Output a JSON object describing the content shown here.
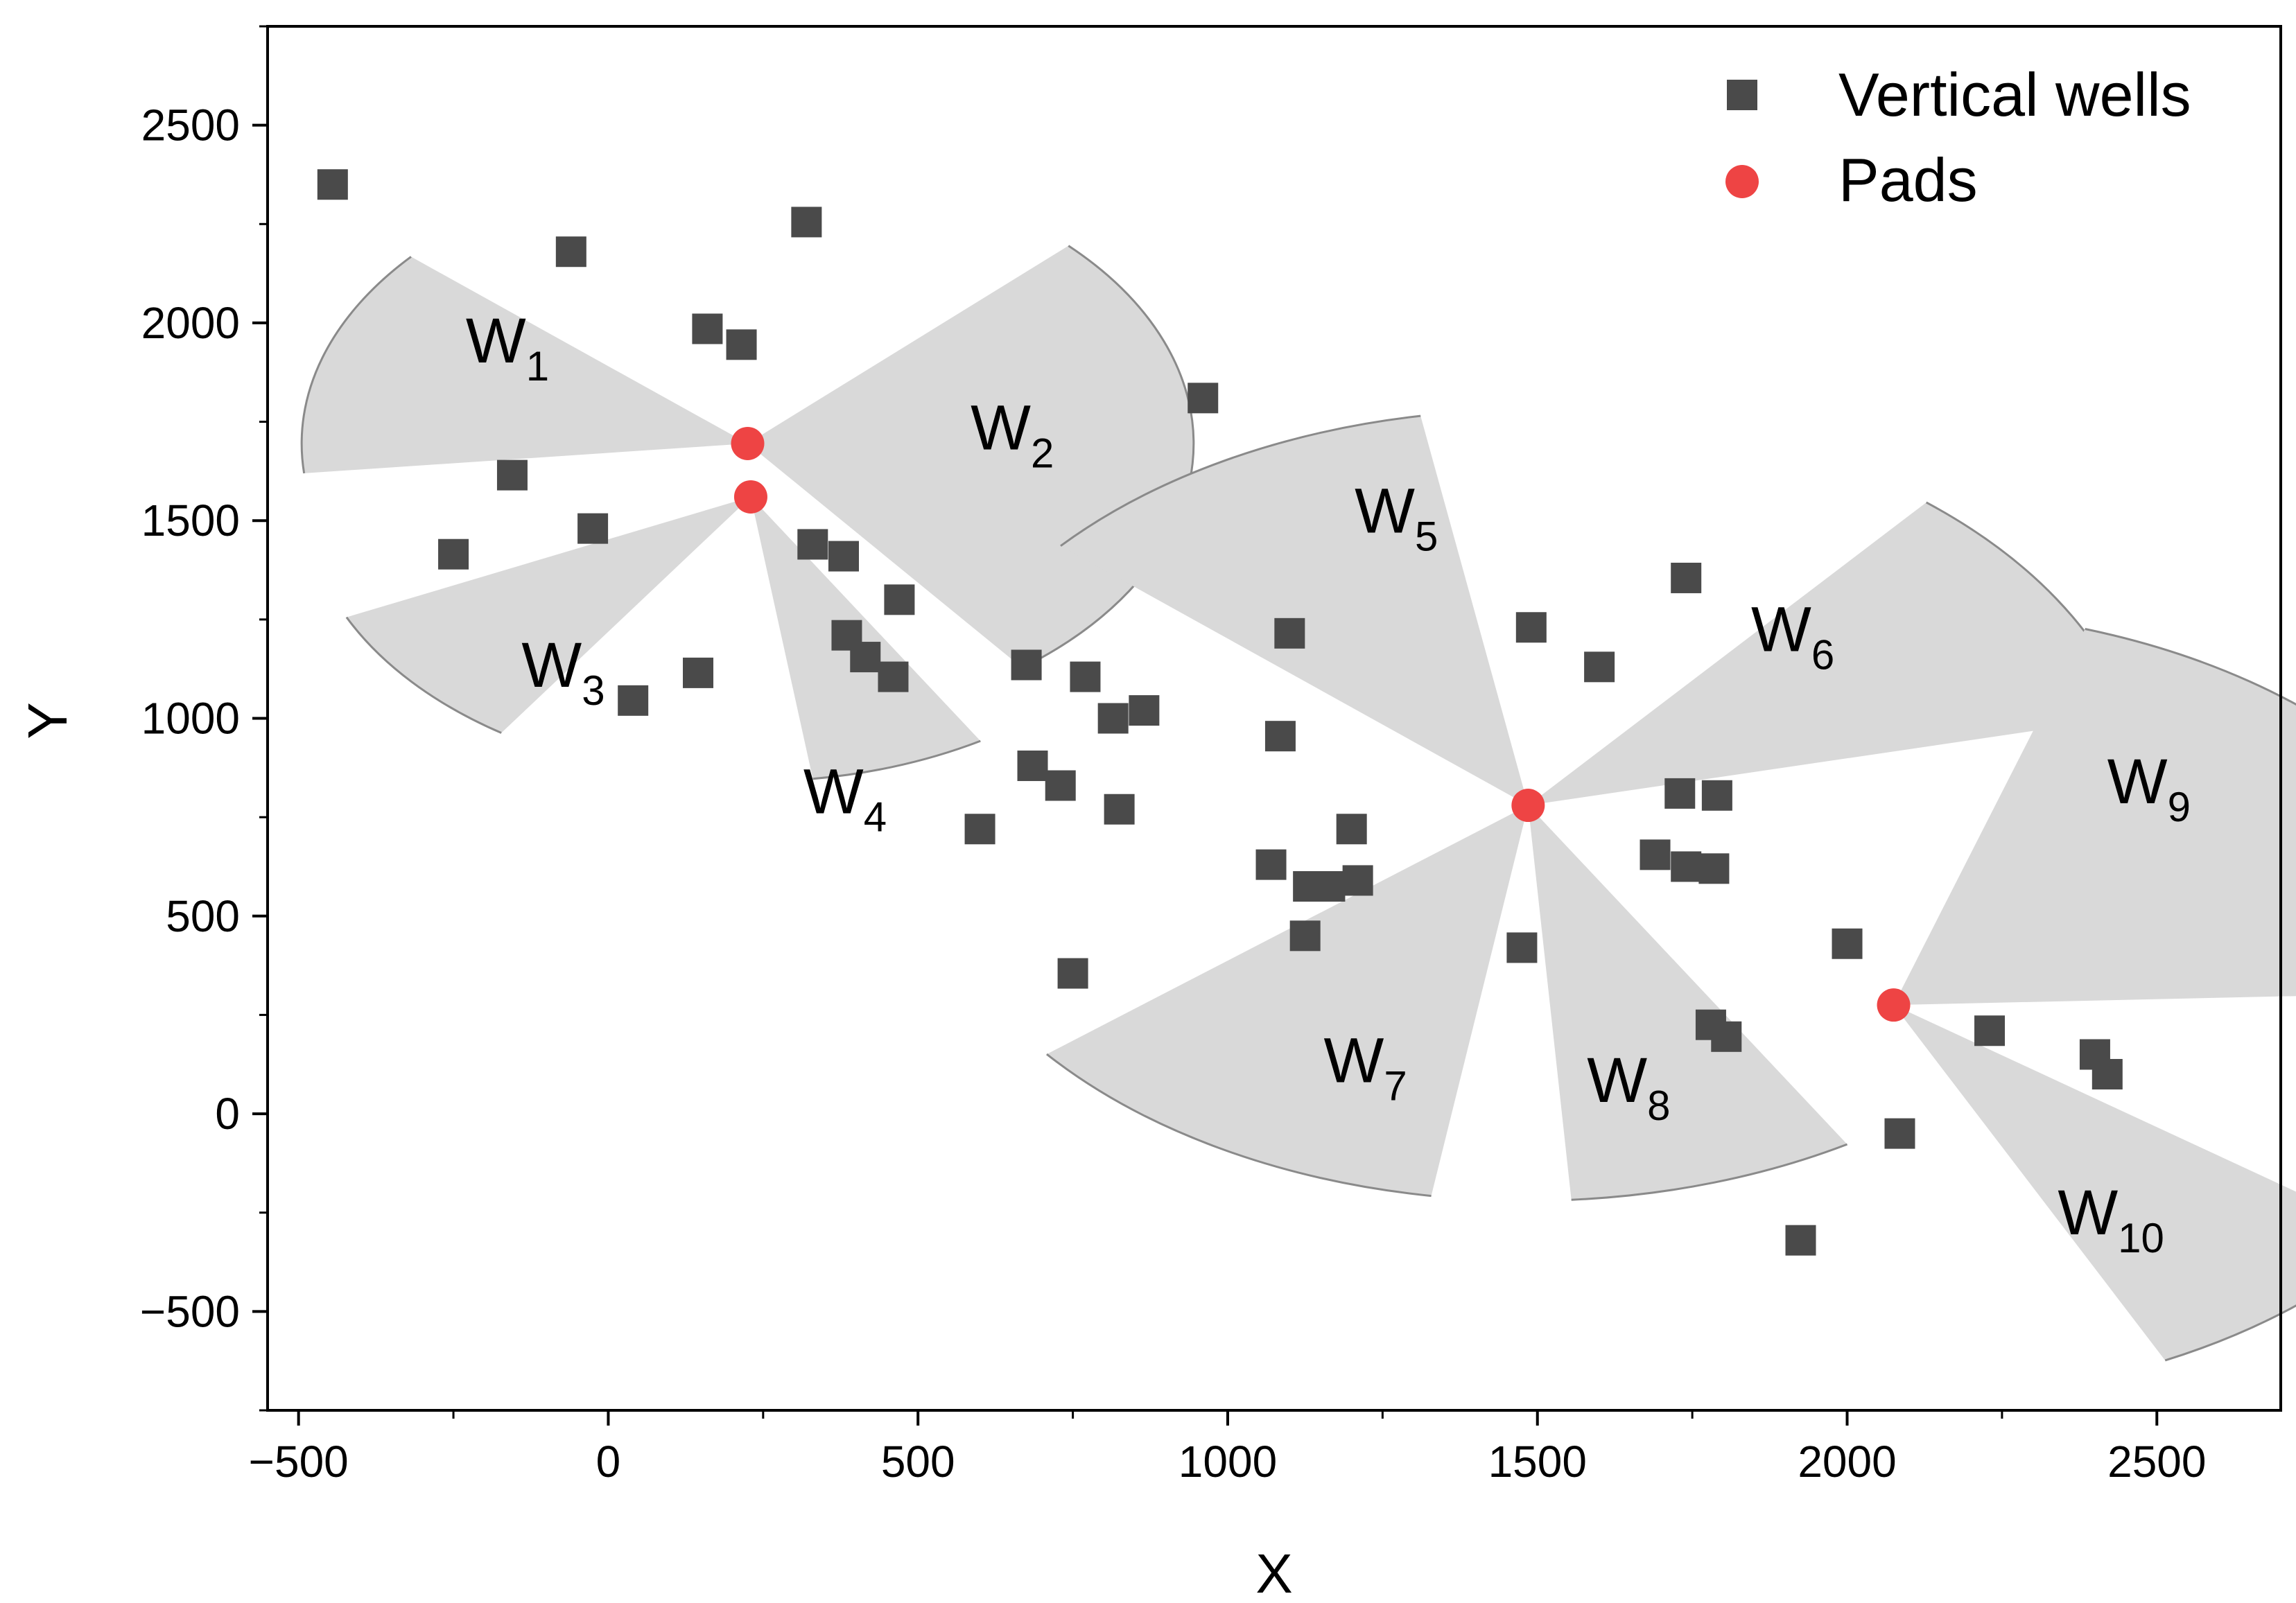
{
  "chart_data": {
    "type": "scatter",
    "xlabel": "X",
    "ylabel": "Y",
    "xlim": [
      -550,
      2700
    ],
    "ylim": [
      -750,
      2750
    ],
    "x_ticks": [
      -500,
      0,
      500,
      1000,
      1500,
      2000,
      2500
    ],
    "y_ticks": [
      -500,
      0,
      500,
      1000,
      1500,
      2000,
      2500
    ],
    "x_tick_labels": [
      "−500",
      "0",
      "500",
      "1000",
      "1500",
      "2000",
      "2500"
    ],
    "y_tick_labels": [
      "−500",
      "0",
      "500",
      "1000",
      "1500",
      "2000",
      "2500"
    ],
    "grid": false,
    "legend_position": "top-right",
    "series": [
      {
        "name": "Vertical wells",
        "marker": "square",
        "color": "#4a4a4a",
        "points": [
          [
            -445,
            2350
          ],
          [
            -60,
            2180
          ],
          [
            160,
            1985
          ],
          [
            215,
            1945
          ],
          [
            320,
            2255
          ],
          [
            -155,
            1615
          ],
          [
            -250,
            1415
          ],
          [
            -25,
            1480
          ],
          [
            330,
            1440
          ],
          [
            380,
            1410
          ],
          [
            470,
            1300
          ],
          [
            385,
            1210
          ],
          [
            415,
            1155
          ],
          [
            460,
            1105
          ],
          [
            40,
            1045
          ],
          [
            145,
            1115
          ],
          [
            600,
            720
          ],
          [
            675,
            1135
          ],
          [
            685,
            880
          ],
          [
            730,
            830
          ],
          [
            770,
            1105
          ],
          [
            815,
            1000
          ],
          [
            865,
            1020
          ],
          [
            825,
            770
          ],
          [
            750,
            355
          ],
          [
            960,
            1810
          ],
          [
            1100,
            1215
          ],
          [
            1085,
            955
          ],
          [
            1070,
            630
          ],
          [
            1130,
            575
          ],
          [
            1165,
            575
          ],
          [
            1200,
            720
          ],
          [
            1210,
            590
          ],
          [
            1125,
            450
          ],
          [
            1475,
            420
          ],
          [
            1490,
            1230
          ],
          [
            1600,
            1130
          ],
          [
            1740,
            1355
          ],
          [
            1730,
            810
          ],
          [
            1790,
            805
          ],
          [
            1690,
            655
          ],
          [
            1740,
            625
          ],
          [
            1785,
            620
          ],
          [
            1780,
            225
          ],
          [
            1805,
            195
          ],
          [
            2000,
            430
          ],
          [
            2085,
            -50
          ],
          [
            2230,
            210
          ],
          [
            2400,
            150
          ],
          [
            2420,
            100
          ],
          [
            1925,
            -320
          ]
        ]
      },
      {
        "name": "Pads",
        "marker": "circle",
        "color": "#ee4444",
        "points": [
          [
            225,
            1695
          ],
          [
            230,
            1560
          ],
          [
            1485,
            780
          ],
          [
            2075,
            275
          ]
        ]
      }
    ],
    "sectors": [
      {
        "label": "W",
        "sub": "1",
        "center": [
          225,
          1695
        ],
        "radius": 720,
        "start_angle": 139,
        "end_angle": 186,
        "label_pos": [
          -230,
          1900
        ]
      },
      {
        "label": "W",
        "sub": "2",
        "center": [
          225,
          1695
        ],
        "radius": 720,
        "start_angle": -52,
        "end_angle": 44,
        "label_pos": [
          585,
          1680
        ]
      },
      {
        "label": "W",
        "sub": "3",
        "center": [
          230,
          1560
        ],
        "radius": 720,
        "start_angle": 205,
        "end_angle": 236,
        "label_pos": [
          -140,
          1080
        ]
      },
      {
        "label": "W",
        "sub": "4",
        "center": [
          230,
          1560
        ],
        "radius": 720,
        "start_angle": 278,
        "end_angle": 301,
        "label_pos": [
          315,
          760
        ]
      },
      {
        "label": "W",
        "sub": "5",
        "center": [
          1485,
          780
        ],
        "radius": 1000,
        "start_angle": 100,
        "end_angle": 139,
        "label_pos": [
          1205,
          1470
        ]
      },
      {
        "label": "W",
        "sub": "6",
        "center": [
          1485,
          780
        ],
        "radius": 1000,
        "start_angle": 13,
        "end_angle": 50,
        "label_pos": [
          1845,
          1170
        ]
      },
      {
        "label": "W",
        "sub": "7",
        "center": [
          1485,
          780
        ],
        "radius": 1000,
        "start_angle": 219,
        "end_angle": 261,
        "label_pos": [
          1155,
          80
        ]
      },
      {
        "label": "W",
        "sub": "8",
        "center": [
          1485,
          780
        ],
        "radius": 1000,
        "start_angle": 274,
        "end_angle": 301,
        "label_pos": [
          1580,
          30
        ]
      },
      {
        "label": "W",
        "sub": "9",
        "center": [
          2075,
          275
        ],
        "radius": 1000,
        "start_angle": 2,
        "end_angle": 72,
        "label_pos": [
          2420,
          785
        ]
      },
      {
        "label": "W",
        "sub": "10",
        "center": [
          2075,
          275
        ],
        "radius": 1000,
        "start_angle": 296,
        "end_angle": 324,
        "label_pos": [
          2340,
          -305
        ]
      }
    ]
  }
}
